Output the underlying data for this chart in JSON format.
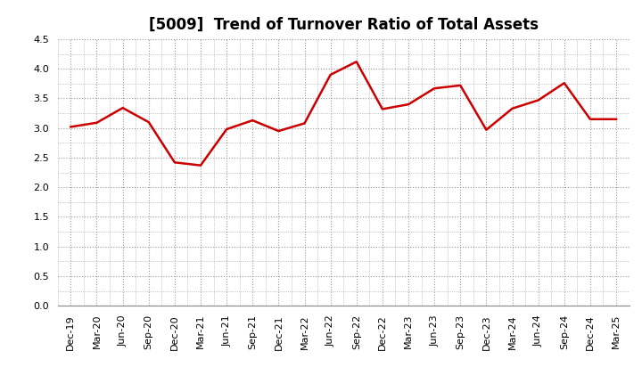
{
  "title": "[5009]  Trend of Turnover Ratio of Total Assets",
  "x_labels": [
    "Dec-19",
    "Mar-20",
    "Jun-20",
    "Sep-20",
    "Dec-20",
    "Mar-21",
    "Jun-21",
    "Sep-21",
    "Dec-21",
    "Mar-22",
    "Jun-22",
    "Sep-22",
    "Dec-22",
    "Mar-23",
    "Jun-23",
    "Sep-23",
    "Dec-23",
    "Mar-24",
    "Jun-24",
    "Sep-24",
    "Dec-24",
    "Mar-25"
  ],
  "values": [
    3.02,
    3.09,
    3.34,
    3.1,
    2.42,
    2.37,
    2.98,
    3.13,
    2.95,
    3.08,
    3.9,
    4.12,
    3.32,
    3.4,
    3.67,
    3.72,
    2.97,
    3.33,
    3.47,
    3.76,
    3.15,
    3.15
  ],
  "line_color": "#cc0000",
  "line_width": 1.8,
  "ylim": [
    0.0,
    4.5
  ],
  "yticks": [
    0.0,
    0.5,
    1.0,
    1.5,
    2.0,
    2.5,
    3.0,
    3.5,
    4.0,
    4.5
  ],
  "grid_color": "#999999",
  "bg_color": "#ffffff",
  "title_fontsize": 12,
  "tick_fontsize": 8
}
